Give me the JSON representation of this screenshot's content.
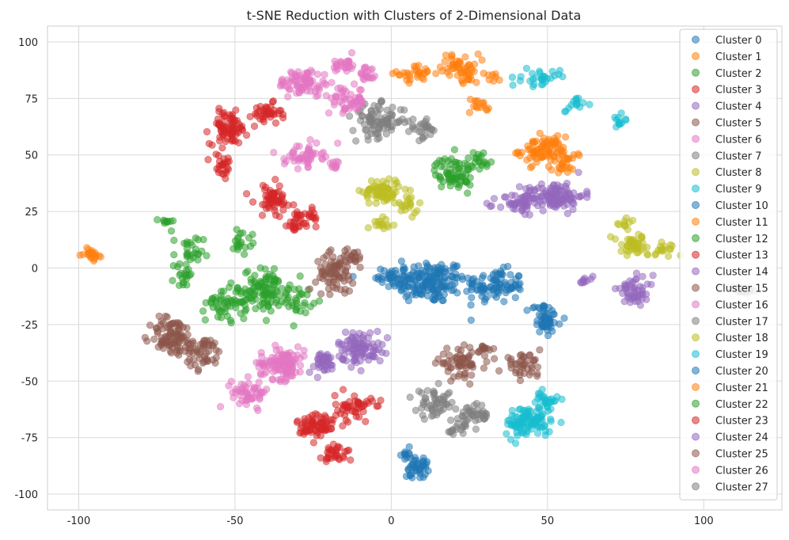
{
  "chart_data": {
    "type": "scatter",
    "title": "t-SNE Reduction with Clusters of 2-Dimensional Data",
    "xlabel": "",
    "ylabel": "",
    "xlim": [
      -110,
      125
    ],
    "ylim": [
      -107,
      107
    ],
    "xticks": [
      -100,
      -50,
      0,
      50,
      100
    ],
    "yticks": [
      -100,
      -75,
      -50,
      -25,
      0,
      25,
      50,
      75,
      100
    ],
    "grid": true,
    "legend_position": "right",
    "colors": [
      "#1f77b4",
      "#ff7f0e",
      "#2ca02c",
      "#d62728",
      "#9467bd",
      "#8c564b",
      "#e377c2",
      "#7f7f7f",
      "#bcbd22",
      "#17becf"
    ],
    "series": [
      {
        "name": "Cluster 0",
        "blobs": [
          [
            12,
            -6,
            10,
            8,
            160
          ],
          [
            33,
            -8,
            8,
            6,
            90
          ],
          [
            0,
            -4,
            4,
            5,
            30
          ]
        ]
      },
      {
        "name": "Cluster 1",
        "blobs": [
          [
            8,
            86,
            5,
            3,
            30
          ],
          [
            22,
            90,
            5,
            4,
            40
          ],
          [
            28,
            72,
            3,
            3,
            15
          ],
          [
            48,
            52,
            6,
            5,
            80
          ],
          [
            56,
            47,
            4,
            5,
            30
          ]
        ]
      },
      {
        "name": "Cluster 2",
        "blobs": [
          [
            -40,
            -10,
            6,
            8,
            90
          ],
          [
            -52,
            -15,
            6,
            7,
            60
          ],
          [
            -30,
            -14,
            4,
            5,
            30
          ],
          [
            -65,
            5,
            4,
            8,
            30
          ],
          [
            -72,
            20,
            2,
            2,
            10
          ]
        ]
      },
      {
        "name": "Cluster 3",
        "blobs": [
          [
            -52,
            62,
            5,
            6,
            80
          ],
          [
            -40,
            68,
            4,
            4,
            40
          ],
          [
            -54,
            45,
            3,
            5,
            25
          ]
        ]
      },
      {
        "name": "Cluster 4",
        "blobs": [
          [
            52,
            32,
            8,
            5,
            120
          ],
          [
            40,
            28,
            5,
            4,
            40
          ]
        ]
      },
      {
        "name": "Cluster 5",
        "blobs": [
          [
            -70,
            -30,
            6,
            7,
            90
          ],
          [
            -60,
            -38,
            5,
            6,
            50
          ]
        ]
      },
      {
        "name": "Cluster 6",
        "blobs": [
          [
            -35,
            -42,
            6,
            6,
            110
          ],
          [
            -45,
            -55,
            5,
            5,
            50
          ]
        ]
      },
      {
        "name": "Cluster 7",
        "blobs": [
          [
            -4,
            65,
            7,
            6,
            90
          ],
          [
            10,
            62,
            4,
            4,
            25
          ]
        ]
      },
      {
        "name": "Cluster 8",
        "blobs": [
          [
            -3,
            34,
            5,
            5,
            70
          ],
          [
            5,
            28,
            3,
            4,
            20
          ],
          [
            -2,
            20,
            3,
            2,
            15
          ]
        ]
      },
      {
        "name": "Cluster 9",
        "blobs": [
          [
            44,
            -68,
            6,
            6,
            110
          ],
          [
            50,
            -58,
            3,
            3,
            25
          ]
        ]
      },
      {
        "name": "Cluster 10",
        "blobs": [
          [
            8,
            -88,
            3,
            4,
            40
          ],
          [
            5,
            -82,
            2,
            2,
            10
          ]
        ]
      },
      {
        "name": "Cluster 11",
        "blobs": [
          [
            -96,
            6,
            2,
            2,
            25
          ]
        ]
      },
      {
        "name": "Cluster 12",
        "blobs": [
          [
            20,
            42,
            5,
            6,
            70
          ],
          [
            28,
            48,
            3,
            3,
            20
          ]
        ]
      },
      {
        "name": "Cluster 13",
        "blobs": [
          [
            -24,
            -70,
            5,
            6,
            70
          ],
          [
            -12,
            -62,
            5,
            5,
            50
          ],
          [
            -17,
            -82,
            4,
            4,
            30
          ]
        ]
      },
      {
        "name": "Cluster 14",
        "blobs": [
          [
            -10,
            -35,
            6,
            6,
            90
          ],
          [
            -22,
            -42,
            4,
            4,
            40
          ]
        ]
      },
      {
        "name": "Cluster 15",
        "blobs": [
          [
            -18,
            -2,
            5,
            7,
            70
          ],
          [
            -12,
            5,
            3,
            3,
            20
          ]
        ]
      },
      {
        "name": "Cluster 16",
        "blobs": [
          [
            -28,
            82,
            7,
            5,
            80
          ],
          [
            -15,
            90,
            3,
            3,
            25
          ],
          [
            -28,
            50,
            5,
            4,
            50
          ],
          [
            -18,
            45,
            2,
            2,
            10
          ]
        ]
      },
      {
        "name": "Cluster 17",
        "blobs": [
          [
            112,
            -10,
            3,
            2,
            20
          ]
        ]
      },
      {
        "name": "Cluster 18",
        "blobs": [
          [
            78,
            10,
            6,
            4,
            50
          ],
          [
            88,
            8,
            3,
            3,
            15
          ],
          [
            75,
            20,
            3,
            2,
            10
          ]
        ]
      },
      {
        "name": "Cluster 19",
        "blobs": [
          [
            48,
            84,
            5,
            3,
            30
          ],
          [
            58,
            72,
            3,
            3,
            15
          ],
          [
            73,
            65,
            2,
            3,
            12
          ]
        ]
      },
      {
        "name": "Cluster 20",
        "blobs": [
          [
            50,
            -24,
            4,
            4,
            40
          ],
          [
            48,
            -18,
            3,
            3,
            15
          ]
        ]
      },
      {
        "name": "Cluster 21",
        "blobs": [
          [
            24,
            84,
            3,
            3,
            15
          ],
          [
            32,
            84,
            2,
            2,
            8
          ]
        ]
      },
      {
        "name": "Cluster 22",
        "blobs": [
          [
            -48,
            12,
            3,
            4,
            20
          ],
          [
            -66,
            -4,
            3,
            3,
            15
          ]
        ]
      },
      {
        "name": "Cluster 23",
        "blobs": [
          [
            -38,
            30,
            5,
            6,
            60
          ],
          [
            -30,
            20,
            4,
            4,
            30
          ],
          [
            -25,
            24,
            2,
            3,
            10
          ]
        ]
      },
      {
        "name": "Cluster 24",
        "blobs": [
          [
            78,
            -10,
            5,
            5,
            50
          ],
          [
            62,
            -6,
            2,
            2,
            10
          ]
        ]
      },
      {
        "name": "Cluster 25",
        "blobs": [
          [
            22,
            -42,
            6,
            5,
            60
          ],
          [
            42,
            -43,
            5,
            4,
            40
          ],
          [
            30,
            -36,
            3,
            2,
            15
          ]
        ]
      },
      {
        "name": "Cluster 26",
        "blobs": [
          [
            -14,
            74,
            5,
            5,
            50
          ],
          [
            -8,
            85,
            3,
            3,
            20
          ]
        ]
      },
      {
        "name": "Cluster 27",
        "blobs": [
          [
            14,
            -60,
            5,
            5,
            50
          ],
          [
            26,
            -65,
            5,
            4,
            40
          ],
          [
            22,
            -72,
            3,
            3,
            15
          ]
        ]
      }
    ]
  }
}
